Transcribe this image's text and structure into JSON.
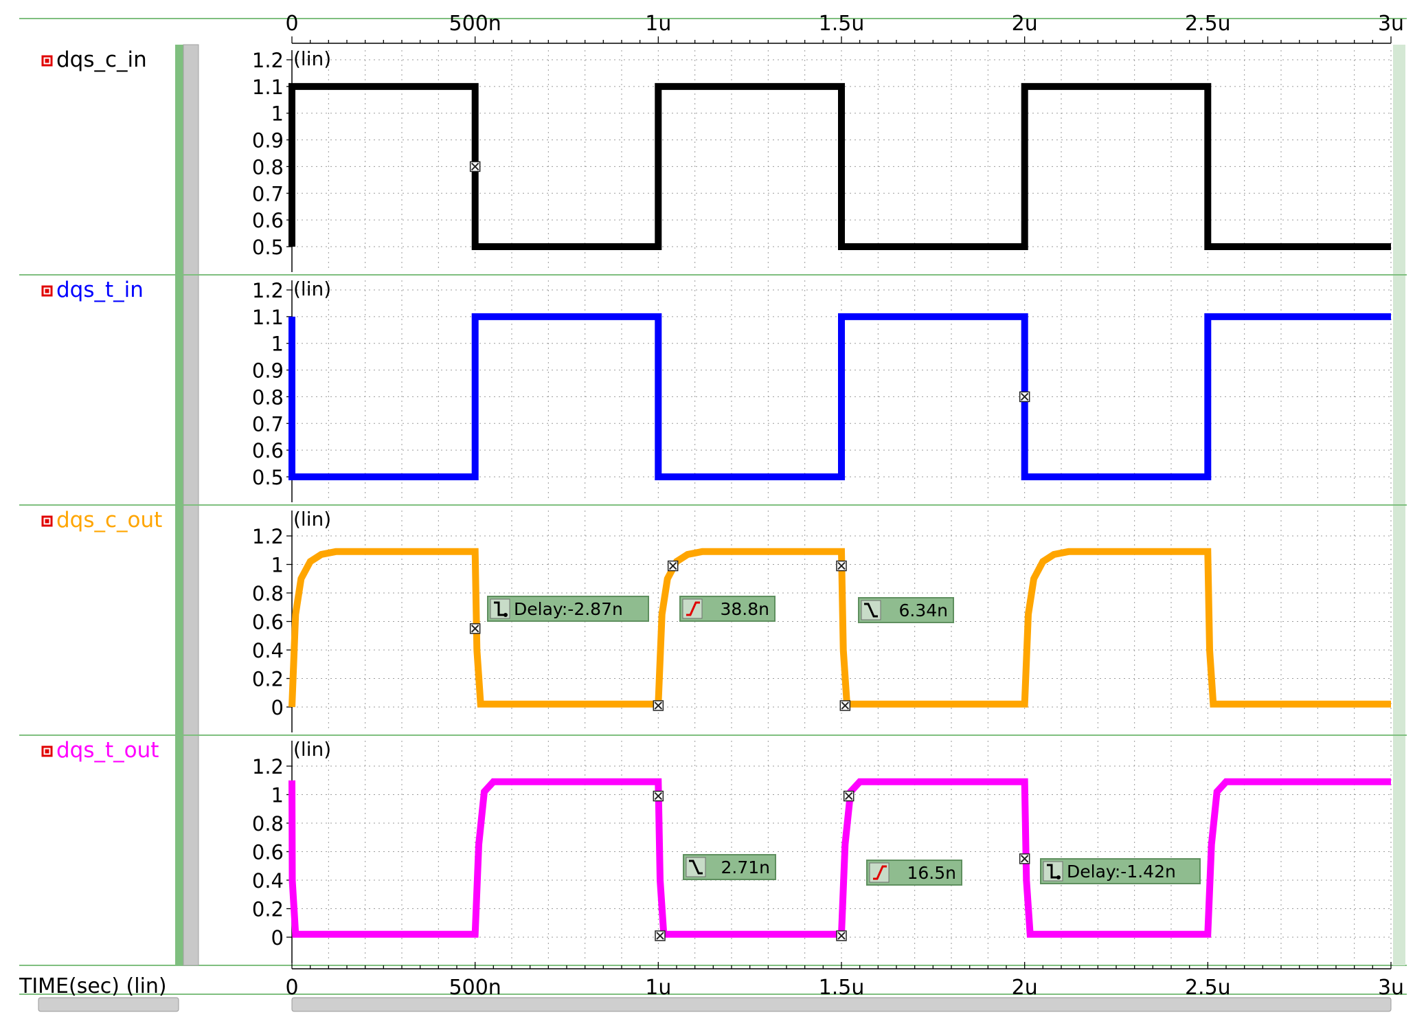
{
  "time_axis": {
    "label": "TIME(sec) (lin)",
    "tick_labels": [
      "0",
      "500n",
      "1u",
      "1.5u",
      "2u",
      "2.5u",
      "3u"
    ],
    "tick_values_s": [
      0,
      5e-07,
      1e-06,
      1.5e-06,
      2e-06,
      2.5e-06,
      3e-06
    ],
    "range_s": [
      0,
      3e-06
    ]
  },
  "chart_data": {
    "type": "line",
    "x_unit": "s",
    "series": [
      {
        "name": "dqs_c_in",
        "color": "#000000",
        "scale_label": "(lin)",
        "ylim": [
          0.5,
          1.2
        ],
        "y_tick_labels": [
          "1.2",
          "1.1",
          "1",
          "0.9",
          "0.8",
          "0.7",
          "0.6",
          "0.5"
        ],
        "y_tick_values": [
          1.2,
          1.1,
          1.0,
          0.9,
          0.8,
          0.7,
          0.6,
          0.5
        ],
        "x": [
          0,
          0,
          5e-07,
          5e-07,
          1e-06,
          1e-06,
          1.5e-06,
          1.5e-06,
          2e-06,
          2e-06,
          2.5e-06,
          2.5e-06,
          3e-06
        ],
        "y": [
          0.5,
          1.1,
          1.1,
          0.5,
          0.5,
          1.1,
          1.1,
          0.5,
          0.5,
          1.1,
          1.1,
          0.5,
          0.5
        ]
      },
      {
        "name": "dqs_t_in",
        "color": "#0000ff",
        "scale_label": "(lin)",
        "ylim": [
          0.5,
          1.2
        ],
        "y_tick_labels": [
          "1.2",
          "1.1",
          "1",
          "0.9",
          "0.8",
          "0.7",
          "0.6",
          "0.5"
        ],
        "y_tick_values": [
          1.2,
          1.1,
          1.0,
          0.9,
          0.8,
          0.7,
          0.6,
          0.5
        ],
        "x": [
          0,
          0,
          5e-07,
          5e-07,
          1e-06,
          1e-06,
          1.5e-06,
          1.5e-06,
          2e-06,
          2e-06,
          2.5e-06,
          2.5e-06,
          3e-06
        ],
        "y": [
          1.1,
          0.5,
          0.5,
          1.1,
          1.1,
          0.5,
          0.5,
          1.1,
          1.1,
          0.5,
          0.5,
          1.1,
          1.1
        ]
      },
      {
        "name": "dqs_c_out",
        "color": "#ffa500",
        "scale_label": "(lin)",
        "ylim": [
          0,
          1.25
        ],
        "y_tick_labels": [
          "1.2",
          "1",
          "0.8",
          "0.6",
          "0.4",
          "0.2",
          "0"
        ],
        "y_tick_values": [
          1.2,
          1.0,
          0.8,
          0.6,
          0.4,
          0.2,
          0
        ],
        "x": [
          0,
          1e-08,
          2.5e-08,
          5e-08,
          8e-08,
          1.2e-07,
          5e-07,
          5.05e-07,
          5.15e-07,
          1e-06,
          1.01e-06,
          1.025e-06,
          1.05e-06,
          1.08e-06,
          1.12e-06,
          1.5e-06,
          1.505e-06,
          1.515e-06,
          2e-06,
          2.01e-06,
          2.025e-06,
          2.05e-06,
          2.08e-06,
          2.12e-06,
          2.5e-06,
          2.505e-06,
          2.515e-06,
          3e-06
        ],
        "y": [
          0,
          0.65,
          0.9,
          1.02,
          1.07,
          1.09,
          1.09,
          0.4,
          0.02,
          0.02,
          0.65,
          0.9,
          1.02,
          1.07,
          1.09,
          1.09,
          0.4,
          0.02,
          0.02,
          0.65,
          0.9,
          1.02,
          1.07,
          1.09,
          1.09,
          0.4,
          0.02,
          0.02
        ]
      },
      {
        "name": "dqs_t_out",
        "color": "#ff00ff",
        "scale_label": "(lin)",
        "ylim": [
          0,
          1.25
        ],
        "y_tick_labels": [
          "1.2",
          "1",
          "0.8",
          "0.6",
          "0.4",
          "0.2",
          "0"
        ],
        "y_tick_values": [
          1.2,
          1.0,
          0.8,
          0.6,
          0.4,
          0.2,
          0
        ],
        "x": [
          0,
          1e-09,
          1e-08,
          5e-07,
          5.1e-07,
          5.25e-07,
          5.5e-07,
          1e-06,
          1.005e-06,
          1.015e-06,
          1.5e-06,
          1.51e-06,
          1.525e-06,
          1.55e-06,
          2e-06,
          2.005e-06,
          2.015e-06,
          2.5e-06,
          2.51e-06,
          2.525e-06,
          2.55e-06,
          3e-06
        ],
        "y": [
          1.1,
          0.4,
          0.02,
          0.02,
          0.65,
          1.02,
          1.09,
          1.09,
          0.4,
          0.02,
          0.02,
          0.65,
          1.02,
          1.09,
          1.09,
          0.4,
          0.02,
          0.02,
          0.65,
          1.02,
          1.09,
          1.09
        ]
      }
    ],
    "measurements": [
      {
        "series": "dqs_c_out",
        "kind": "delay",
        "text": "Delay:-2.87n",
        "at_x": 5e-07
      },
      {
        "series": "dqs_c_out",
        "kind": "rise",
        "text": "38.8n",
        "at_x": 1e-06
      },
      {
        "series": "dqs_c_out",
        "kind": "fall",
        "text": "6.34n",
        "at_x": 1.5e-06
      },
      {
        "series": "dqs_t_out",
        "kind": "fall",
        "text": "2.71n",
        "at_x": 1e-06
      },
      {
        "series": "dqs_t_out",
        "kind": "rise",
        "text": "16.5n",
        "at_x": 1.5e-06
      },
      {
        "series": "dqs_t_out",
        "kind": "delay",
        "text": "Delay:-1.42n",
        "at_x": 2e-06
      }
    ],
    "markers": [
      {
        "series": "dqs_c_in",
        "x": 5e-07,
        "y": 0.8
      },
      {
        "series": "dqs_t_in",
        "x": 2e-06,
        "y": 0.8
      },
      {
        "series": "dqs_c_out",
        "x": 5e-07,
        "y": 0.55
      },
      {
        "series": "dqs_c_out",
        "x": 1e-06,
        "y": 0.01
      },
      {
        "series": "dqs_c_out",
        "x": 1.04e-06,
        "y": 0.99
      },
      {
        "series": "dqs_c_out",
        "x": 1.5e-06,
        "y": 0.99
      },
      {
        "series": "dqs_c_out",
        "x": 1.51e-06,
        "y": 0.01
      },
      {
        "series": "dqs_t_out",
        "x": 1e-06,
        "y": 0.99
      },
      {
        "series": "dqs_t_out",
        "x": 1.005e-06,
        "y": 0.01
      },
      {
        "series": "dqs_t_out",
        "x": 1.5e-06,
        "y": 0.01
      },
      {
        "series": "dqs_t_out",
        "x": 1.52e-06,
        "y": 0.99
      },
      {
        "series": "dqs_t_out",
        "x": 2e-06,
        "y": 0.55
      }
    ],
    "grid": true
  }
}
